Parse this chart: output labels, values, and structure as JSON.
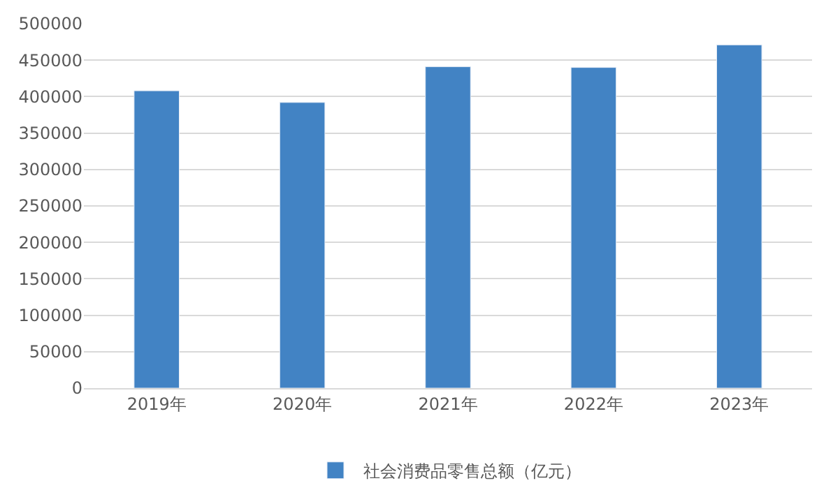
{
  "chart_data": {
    "type": "bar",
    "categories": [
      "2019年",
      "2020年",
      "2021年",
      "2022年",
      "2023年"
    ],
    "series": [
      {
        "name": "社会消费品零售总额（亿元）",
        "color": "#4283c4",
        "values": [
          408000,
          392000,
          441000,
          440000,
          471000
        ]
      }
    ],
    "ylim": [
      0,
      500000
    ],
    "yticks": [
      0,
      50000,
      100000,
      150000,
      200000,
      250000,
      300000,
      350000,
      400000,
      450000,
      500000
    ],
    "grid": "y",
    "legend": "bottom"
  }
}
